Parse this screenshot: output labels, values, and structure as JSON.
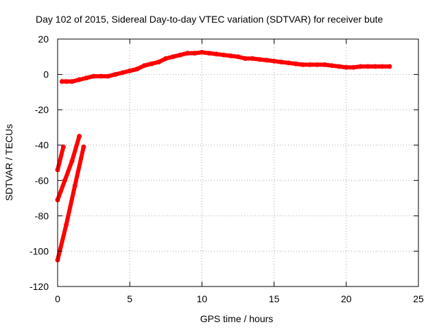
{
  "colors": {
    "series": "#ff0000",
    "grid": "#a0a0a0",
    "axis": "#000000",
    "background": "#ffffff"
  },
  "chart_data": {
    "type": "scatter",
    "title": "Day 102 of 2015, Sidereal Day-to-day VTEC variation (SDTVAR) for receiver bute",
    "xlabel": "GPS time / hours",
    "ylabel": "SDTVAR / TECUs",
    "xlim": [
      0,
      25
    ],
    "ylim": [
      -120,
      20
    ],
    "xticks": [
      0,
      5,
      10,
      15,
      20,
      25
    ],
    "yticks": [
      -120,
      -100,
      -80,
      -60,
      -40,
      -20,
      0,
      20
    ],
    "grid": true,
    "legend": "none",
    "series": [
      {
        "style": "thick red points",
        "segments": [
          {
            "x": [
              0.3,
              0.6,
              1.0,
              1.5,
              2.0,
              2.5,
              3.0,
              3.5,
              4.0,
              4.5,
              5.0,
              5.5,
              6.0,
              6.5,
              7.0,
              7.5,
              8.0,
              8.5,
              9.0,
              9.5,
              10.0,
              10.5,
              11.0,
              11.5,
              12.0,
              12.5,
              13.0,
              13.5,
              14.0,
              14.5,
              15.0,
              15.5,
              16.0,
              16.5,
              17.0,
              17.5,
              18.0,
              18.5,
              19.0,
              19.5,
              20.0,
              20.5,
              21.0,
              21.5,
              22.0,
              22.5,
              23.0
            ],
            "y": [
              -4,
              -4,
              -4,
              -3,
              -2,
              -1,
              -1,
              -1,
              0,
              1,
              2,
              3,
              5,
              6,
              7,
              9,
              10,
              11,
              12,
              12,
              12.5,
              12,
              11.5,
              11,
              10.5,
              10,
              9,
              9,
              8.5,
              8,
              7.5,
              7,
              6.5,
              6,
              5.5,
              5.5,
              5.5,
              5.5,
              5,
              4.5,
              4,
              4,
              4.5,
              4.5,
              4.5,
              4.5,
              4.5
            ]
          },
          {
            "x": [
              0.0,
              0.4
            ],
            "y": [
              -54,
              -41
            ]
          },
          {
            "x": [
              0.0,
              0.5,
              1.0,
              1.5
            ],
            "y": [
              -71,
              -60,
              -49,
              -35
            ]
          },
          {
            "x": [
              0.0,
              0.6,
              1.2,
              1.8
            ],
            "y": [
              -105,
              -85,
              -63,
              -41
            ]
          }
        ]
      }
    ]
  }
}
